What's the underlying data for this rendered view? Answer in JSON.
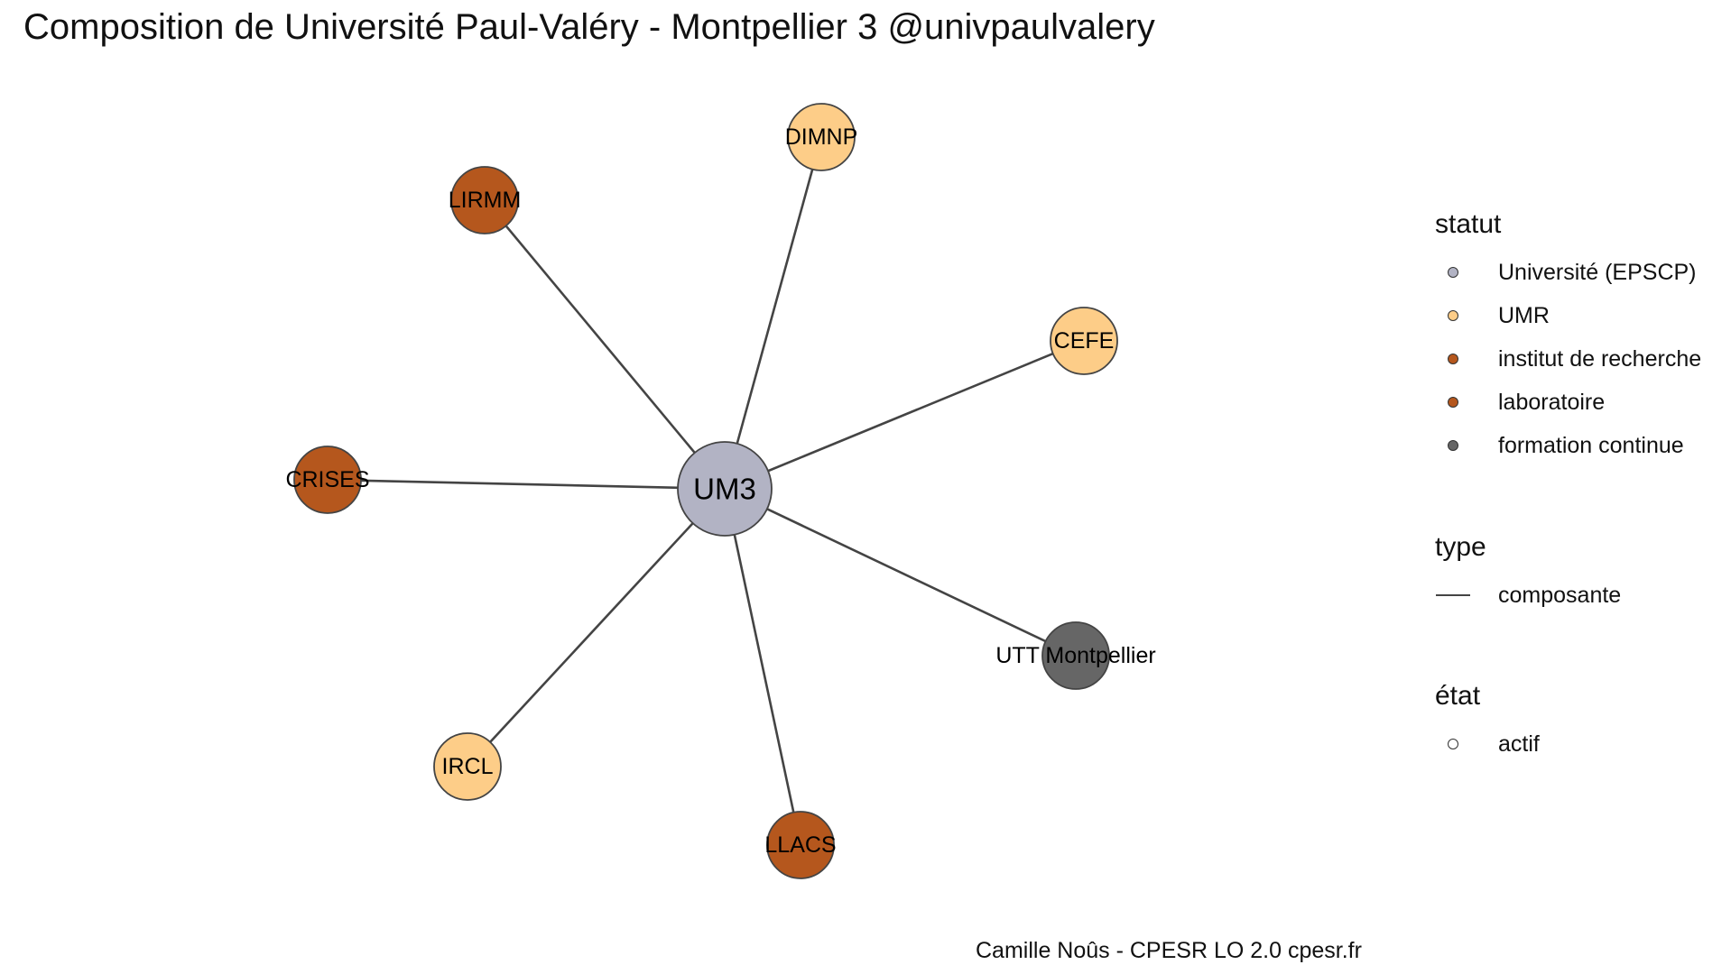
{
  "title": "Composition de Université Paul-Valéry - Montpellier 3 @univpaulvalery",
  "caption": "Camille Noûs - CPESR LO 2.0 cpesr.fr",
  "colors": {
    "universite": "#B2B3C4",
    "umr": "#FDCD88",
    "institut": "#B5571D",
    "laboratoire": "#B5571D",
    "formation": "#666666",
    "edge": "#444444",
    "node_border": "#444444"
  },
  "graph": {
    "nodes": [
      {
        "id": "UM3",
        "label": "UM3",
        "statut": "Université (EPSCP)",
        "color_key": "universite",
        "etat": "actif",
        "center": true
      },
      {
        "id": "DIMNP",
        "label": "DIMNP",
        "statut": "UMR",
        "color_key": "umr",
        "etat": "actif"
      },
      {
        "id": "LIRMM",
        "label": "LIRMM",
        "statut": "laboratoire",
        "color_key": "laboratoire",
        "etat": "actif"
      },
      {
        "id": "CEFE",
        "label": "CEFE",
        "statut": "UMR",
        "color_key": "umr",
        "etat": "actif"
      },
      {
        "id": "CRISES",
        "label": "CRISES",
        "statut": "laboratoire",
        "color_key": "laboratoire",
        "etat": "actif"
      },
      {
        "id": "UTT",
        "label": "UTT Montpellier",
        "statut": "formation continue",
        "color_key": "formation",
        "etat": "actif"
      },
      {
        "id": "IRCL",
        "label": "IRCL",
        "statut": "UMR",
        "color_key": "umr",
        "etat": "actif"
      },
      {
        "id": "LLACS",
        "label": "LLACS",
        "statut": "laboratoire",
        "color_key": "laboratoire",
        "etat": "actif"
      }
    ],
    "edges": [
      {
        "from": "UM3",
        "to": "DIMNP",
        "type": "composante"
      },
      {
        "from": "UM3",
        "to": "LIRMM",
        "type": "composante"
      },
      {
        "from": "UM3",
        "to": "CEFE",
        "type": "composante"
      },
      {
        "from": "UM3",
        "to": "CRISES",
        "type": "composante"
      },
      {
        "from": "UM3",
        "to": "UTT",
        "type": "composante"
      },
      {
        "from": "UM3",
        "to": "IRCL",
        "type": "composante"
      },
      {
        "from": "UM3",
        "to": "LLACS",
        "type": "composante"
      }
    ]
  },
  "legend": {
    "statut": {
      "title": "statut",
      "items": [
        {
          "label": "Université (EPSCP)",
          "color_key": "universite"
        },
        {
          "label": "UMR",
          "color_key": "umr"
        },
        {
          "label": "institut de recherche",
          "color_key": "institut"
        },
        {
          "label": "laboratoire",
          "color_key": "laboratoire"
        },
        {
          "label": "formation continue",
          "color_key": "formation"
        }
      ]
    },
    "type": {
      "title": "type",
      "items": [
        {
          "label": "composante"
        }
      ]
    },
    "etat": {
      "title": "état",
      "items": [
        {
          "label": "actif"
        }
      ]
    }
  }
}
